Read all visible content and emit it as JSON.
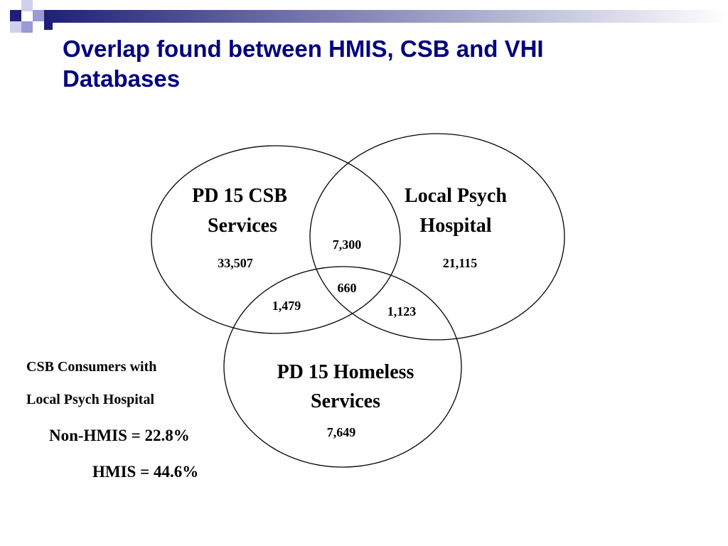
{
  "title": {
    "line1": "Overlap found between HMIS, CSB and VHI",
    "line2": "Databases"
  },
  "colors": {
    "title": "#000080",
    "decoration_dark": "#1f1f7a",
    "decoration_light": "#9a9ad6",
    "outline": "#000000"
  },
  "venn": {
    "sets": [
      {
        "name_line1": "PD 15 CSB",
        "name_line2": "Services",
        "only": "33,507"
      },
      {
        "name_line1": "Local Psych",
        "name_line2": "Hospital",
        "only": "21,115"
      },
      {
        "name_line1": "PD 15 Homeless",
        "name_line2": "Services",
        "only": "7,649"
      }
    ],
    "overlaps": {
      "csb_psych": "7,300",
      "csb_homeless": "1,479",
      "psych_homeless": "1,123",
      "all_three": "660"
    }
  },
  "notes": {
    "line1": "CSB Consumers with",
    "line2": "Local Psych Hospital",
    "non_hmis": "Non-HMIS = 22.8%",
    "hmis": "HMIS = 44.6%"
  }
}
